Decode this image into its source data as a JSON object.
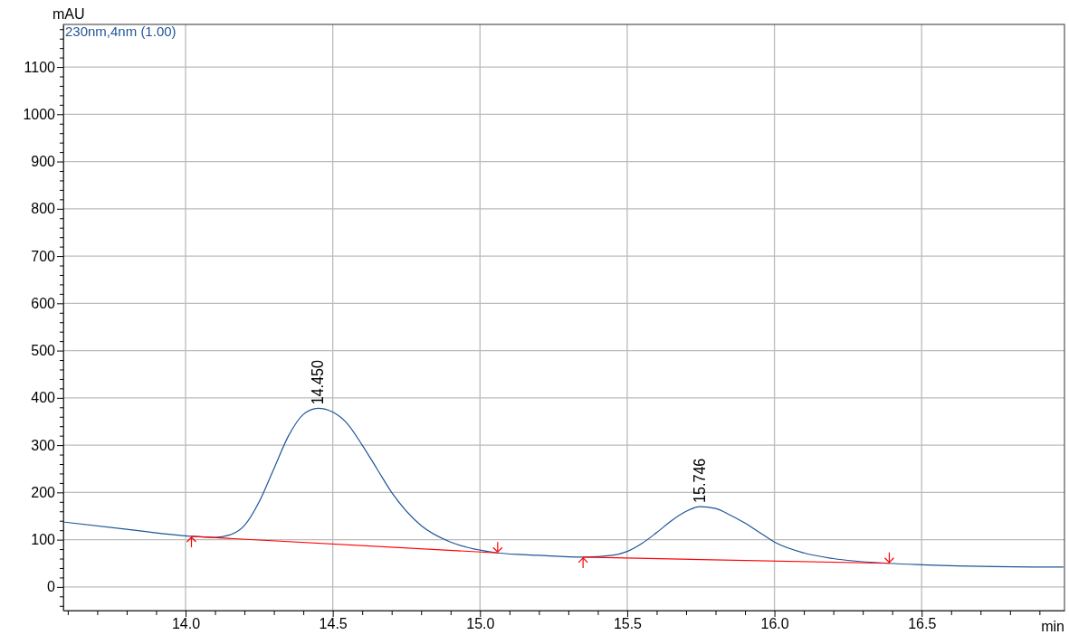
{
  "chart_data": {
    "type": "line",
    "xlabel": "min",
    "ylabel": "mAU",
    "legend": "top left",
    "grid": true,
    "xlim": [
      13.585,
      16.985
    ],
    "ylim": [
      -50,
      1190
    ],
    "xticks": [
      {
        "value": 14,
        "label": "14.0"
      },
      14.5,
      {
        "value": 15,
        "label": "15.0"
      },
      15.5,
      {
        "value": 16,
        "label": "16.0"
      },
      16.5,
      {
        "value": 13.6,
        "label": null
      },
      {
        "value": 13.7,
        "label": null
      },
      {
        "value": 13.8,
        "label": null
      },
      {
        "value": 13.9,
        "label": null
      },
      {
        "value": 14.1,
        "label": null
      },
      {
        "value": 14.2,
        "label": null
      },
      {
        "value": 14.3,
        "label": null
      },
      {
        "value": 14.4,
        "label": null
      },
      {
        "value": 14.6,
        "label": null
      },
      {
        "value": 14.7,
        "label": null
      },
      {
        "value": 14.8,
        "label": null
      },
      {
        "value": 14.9,
        "label": null
      },
      {
        "value": 15.1,
        "label": null
      },
      {
        "value": 15.2,
        "label": null
      },
      {
        "value": 15.3,
        "label": null
      },
      {
        "value": 15.4,
        "label": null
      },
      {
        "value": 15.6,
        "label": null
      },
      {
        "value": 15.7,
        "label": null
      },
      {
        "value": 15.8,
        "label": null
      },
      {
        "value": 15.9,
        "label": null
      },
      {
        "value": 16.1,
        "label": null
      },
      {
        "value": 16.2,
        "label": null
      },
      {
        "value": 16.3,
        "label": null
      },
      {
        "value": 16.4,
        "label": null
      },
      {
        "value": 16.6,
        "label": null
      },
      {
        "value": 16.7,
        "label": null
      },
      {
        "value": 16.8,
        "label": null
      },
      {
        "value": 16.9,
        "label": null
      }
    ],
    "yticks": [
      0,
      100,
      200,
      300,
      400,
      500,
      600,
      700,
      800,
      900,
      1000,
      1100,
      {
        "value": -40,
        "label": null
      },
      {
        "value": -20,
        "label": null
      },
      {
        "value": 20,
        "label": null
      },
      {
        "value": 40,
        "label": null
      },
      {
        "value": 60,
        "label": null
      },
      {
        "value": 80,
        "label": null
      },
      {
        "value": 120,
        "label": null
      },
      {
        "value": 140,
        "label": null
      },
      {
        "value": 160,
        "label": null
      },
      {
        "value": 180,
        "label": null
      },
      {
        "value": 220,
        "label": null
      },
      {
        "value": 240,
        "label": null
      },
      {
        "value": 260,
        "label": null
      },
      {
        "value": 280,
        "label": null
      },
      {
        "value": 320,
        "label": null
      },
      {
        "value": 340,
        "label": null
      },
      {
        "value": 360,
        "label": null
      },
      {
        "value": 380,
        "label": null
      },
      {
        "value": 420,
        "label": null
      },
      {
        "value": 440,
        "label": null
      },
      {
        "value": 460,
        "label": null
      },
      {
        "value": 480,
        "label": null
      },
      {
        "value": 520,
        "label": null
      },
      {
        "value": 540,
        "label": null
      },
      {
        "value": 560,
        "label": null
      },
      {
        "value": 580,
        "label": null
      },
      {
        "value": 620,
        "label": null
      },
      {
        "value": 640,
        "label": null
      },
      {
        "value": 660,
        "label": null
      },
      {
        "value": 680,
        "label": null
      },
      {
        "value": 720,
        "label": null
      },
      {
        "value": 740,
        "label": null
      },
      {
        "value": 760,
        "label": null
      },
      {
        "value": 780,
        "label": null
      },
      {
        "value": 820,
        "label": null
      },
      {
        "value": 840,
        "label": null
      },
      {
        "value": 860,
        "label": null
      },
      {
        "value": 880,
        "label": null
      },
      {
        "value": 920,
        "label": null
      },
      {
        "value": 940,
        "label": null
      },
      {
        "value": 960,
        "label": null
      },
      {
        "value": 980,
        "label": null
      },
      {
        "value": 1020,
        "label": null
      },
      {
        "value": 1040,
        "label": null
      },
      {
        "value": 1060,
        "label": null
      },
      {
        "value": 1080,
        "label": null
      },
      {
        "value": 1120,
        "label": null
      },
      {
        "value": 1140,
        "label": null
      },
      {
        "value": 1160,
        "label": null
      },
      {
        "value": 1180,
        "label": null
      }
    ],
    "series": [
      {
        "name": "230nm,4nm (1.00)",
        "color": "#1f5597",
        "x": [
          13.59,
          13.8,
          14.0,
          14.1,
          14.15,
          14.2,
          14.25,
          14.3,
          14.35,
          14.4,
          14.45,
          14.5,
          14.55,
          14.6,
          14.65,
          14.7,
          14.8,
          14.9,
          15.0,
          15.06,
          15.2,
          15.35,
          15.45,
          15.5,
          15.55,
          15.6,
          15.65,
          15.7,
          15.746,
          15.8,
          15.85,
          15.9,
          15.95,
          16.0,
          16.1,
          16.2,
          16.39,
          16.5,
          16.75,
          16.98
        ],
        "values": [
          137,
          122,
          108,
          105,
          110,
          130,
          180,
          250,
          320,
          365,
          378,
          370,
          345,
          300,
          250,
          200,
          130,
          95,
          78,
          72,
          67,
          63,
          67,
          75,
          92,
          115,
          140,
          160,
          170,
          166,
          152,
          135,
          115,
          95,
          72,
          60,
          50,
          47,
          43,
          42
        ]
      },
      {
        "color": "#ff0000",
        "x": [
          14.02,
          15.06
        ],
        "values": [
          107,
          72
        ]
      },
      {
        "color": "#ff0000",
        "x": [
          15.35,
          16.39
        ],
        "values": [
          63,
          50
        ]
      }
    ],
    "annotations": [
      {
        "text": "14.450",
        "x": 14.45,
        "y": 378
      },
      {
        "text": "15.746",
        "x": 15.746,
        "y": 170
      }
    ]
  }
}
